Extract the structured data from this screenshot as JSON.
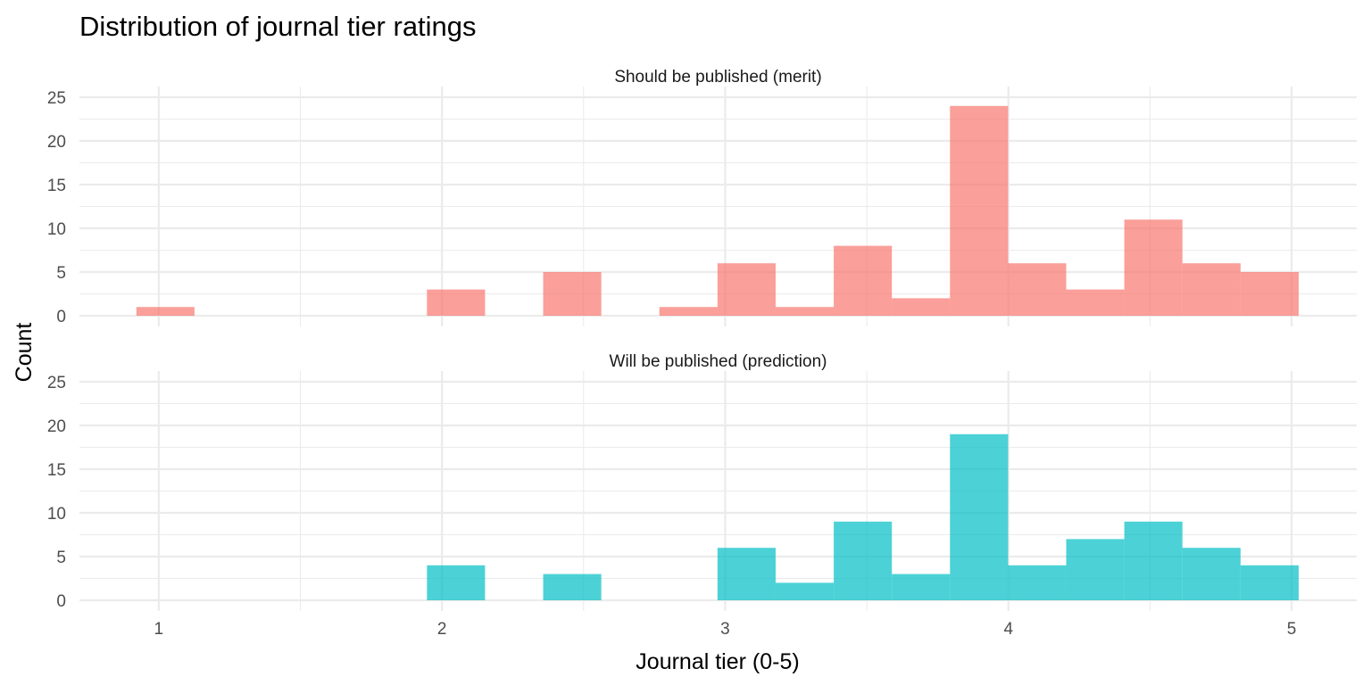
{
  "chart_data": {
    "type": "bar",
    "subtype": "faceted-histogram",
    "title": "Distribution of journal tier ratings",
    "xlabel": "Journal tier (0-5)",
    "ylabel": "Count",
    "xlim": [
      0.72,
      5.23
    ],
    "ylim": [
      0,
      25
    ],
    "x_ticks": [
      1,
      2,
      3,
      4,
      5
    ],
    "x_tick_labels": [
      "1",
      "2",
      "3",
      "4",
      "5"
    ],
    "y_ticks": [
      0,
      5,
      10,
      15,
      20,
      25
    ],
    "y_tick_labels": [
      "0",
      "5",
      "10",
      "15",
      "20",
      "25"
    ],
    "grid": true,
    "legend": "none",
    "bin_start": 0.921,
    "bin_width": 0.2052,
    "bin_centers": [
      1.024,
      1.229,
      1.434,
      1.64,
      1.845,
      2.05,
      2.255,
      2.46,
      2.665,
      2.871,
      3.076,
      3.281,
      3.486,
      3.691,
      3.896,
      4.102,
      4.307,
      4.512,
      4.717,
      4.922
    ],
    "series": [
      {
        "name": "Should be published (merit)",
        "color": "#F8766D",
        "values": [
          1,
          0,
          0,
          0,
          0,
          3,
          0,
          5,
          0,
          1,
          6,
          1,
          8,
          2,
          24,
          6,
          3,
          11,
          6,
          5
        ]
      },
      {
        "name": "Will be published (prediction)",
        "color": "#00BFC4",
        "values": [
          0,
          0,
          0,
          0,
          0,
          4,
          0,
          3,
          0,
          0,
          6,
          2,
          9,
          3,
          19,
          4,
          7,
          9,
          6,
          4
        ]
      }
    ]
  }
}
